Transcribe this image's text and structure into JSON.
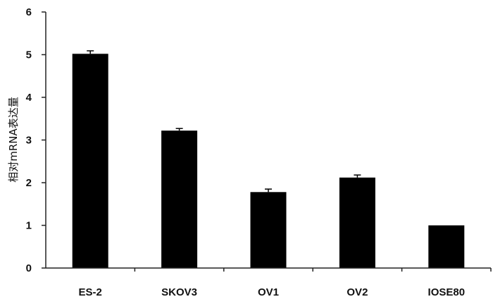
{
  "chart_data": {
    "type": "bar",
    "title": "",
    "xlabel": "",
    "ylabel": "相对mRNA表达量",
    "categories": [
      "ES-2",
      "SKOV3",
      "OV1",
      "OV2",
      "IOSE80"
    ],
    "values": [
      5.02,
      3.22,
      1.78,
      2.12,
      1.0
    ],
    "errors": [
      0.07,
      0.05,
      0.07,
      0.06,
      0
    ],
    "ylim": [
      0,
      6
    ],
    "yticks": [
      0,
      1,
      2,
      3,
      4,
      5,
      6
    ],
    "grid": false,
    "legend": "none",
    "bar_color": "#000000"
  }
}
